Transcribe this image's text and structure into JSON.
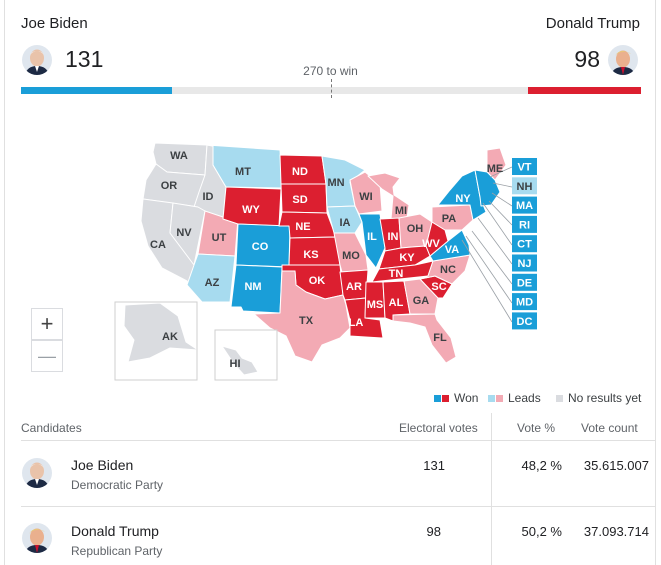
{
  "header": {
    "left_name": "Joe Biden",
    "left_votes": "131",
    "right_name": "Donald Trump",
    "right_votes": "98",
    "win_label": "270 to win",
    "left_share": 0.243,
    "right_share": 0.182
  },
  "colors": {
    "won_blue": "#1a9ed8",
    "won_red": "#dc1f30",
    "leads_blue": "#a7dbef",
    "leads_red": "#f3aab4",
    "no_results": "#dadce0"
  },
  "map": {
    "states": [
      {
        "code": "WA",
        "status": "none"
      },
      {
        "code": "OR",
        "status": "none"
      },
      {
        "code": "CA",
        "status": "none"
      },
      {
        "code": "ID",
        "status": "none"
      },
      {
        "code": "NV",
        "status": "none"
      },
      {
        "code": "UT",
        "status": "leads_red"
      },
      {
        "code": "AZ",
        "status": "leads_blue"
      },
      {
        "code": "MT",
        "status": "leads_blue"
      },
      {
        "code": "WY",
        "status": "won_red"
      },
      {
        "code": "CO",
        "status": "won_blue"
      },
      {
        "code": "NM",
        "status": "won_blue"
      },
      {
        "code": "ND",
        "status": "won_red"
      },
      {
        "code": "SD",
        "status": "won_red"
      },
      {
        "code": "NE",
        "status": "won_red"
      },
      {
        "code": "KS",
        "status": "won_red"
      },
      {
        "code": "OK",
        "status": "won_red"
      },
      {
        "code": "TX",
        "status": "leads_red"
      },
      {
        "code": "MN",
        "status": "leads_blue"
      },
      {
        "code": "IA",
        "status": "leads_blue"
      },
      {
        "code": "MO",
        "status": "leads_red"
      },
      {
        "code": "AR",
        "status": "won_red"
      },
      {
        "code": "LA",
        "status": "won_red"
      },
      {
        "code": "WI",
        "status": "leads_red"
      },
      {
        "code": "IL",
        "status": "won_blue"
      },
      {
        "code": "MI",
        "status": "leads_red"
      },
      {
        "code": "IN",
        "status": "won_red"
      },
      {
        "code": "OH",
        "status": "leads_red"
      },
      {
        "code": "KY",
        "status": "won_red"
      },
      {
        "code": "TN",
        "status": "won_red"
      },
      {
        "code": "MS",
        "status": "won_red"
      },
      {
        "code": "AL",
        "status": "won_red"
      },
      {
        "code": "GA",
        "status": "leads_red"
      },
      {
        "code": "FL",
        "status": "leads_red"
      },
      {
        "code": "SC",
        "status": "won_red"
      },
      {
        "code": "NC",
        "status": "leads_red"
      },
      {
        "code": "VA",
        "status": "won_blue"
      },
      {
        "code": "WV",
        "status": "won_red"
      },
      {
        "code": "PA",
        "status": "leads_red"
      },
      {
        "code": "NY",
        "status": "won_blue"
      },
      {
        "code": "ME",
        "status": "leads_red"
      },
      {
        "code": "AK",
        "status": "none"
      },
      {
        "code": "HI",
        "status": "none"
      }
    ],
    "east_boxes": [
      {
        "code": "VT",
        "status": "won_blue"
      },
      {
        "code": "NH",
        "status": "leads_blue"
      },
      {
        "code": "MA",
        "status": "won_blue"
      },
      {
        "code": "RI",
        "status": "won_blue"
      },
      {
        "code": "CT",
        "status": "won_blue"
      },
      {
        "code": "NJ",
        "status": "won_blue"
      },
      {
        "code": "DE",
        "status": "won_blue"
      },
      {
        "code": "MD",
        "status": "won_blue"
      },
      {
        "code": "DC",
        "status": "won_blue"
      }
    ]
  },
  "zoom": {
    "in": "+",
    "out": "—"
  },
  "legend": {
    "won": "Won",
    "leads": "Leads",
    "none": "No results yet"
  },
  "table": {
    "headers": {
      "candidates": "Candidates",
      "electoral": "Electoral votes",
      "vote_pct": "Vote %",
      "vote_count": "Vote count"
    },
    "rows": [
      {
        "name": "Joe Biden",
        "party": "Democratic Party",
        "electoral": "131",
        "pct": "48,2 %",
        "count": "35.615.007"
      },
      {
        "name": "Donald Trump",
        "party": "Republican Party",
        "electoral": "98",
        "pct": "50,2 %",
        "count": "37.093.714"
      }
    ]
  }
}
